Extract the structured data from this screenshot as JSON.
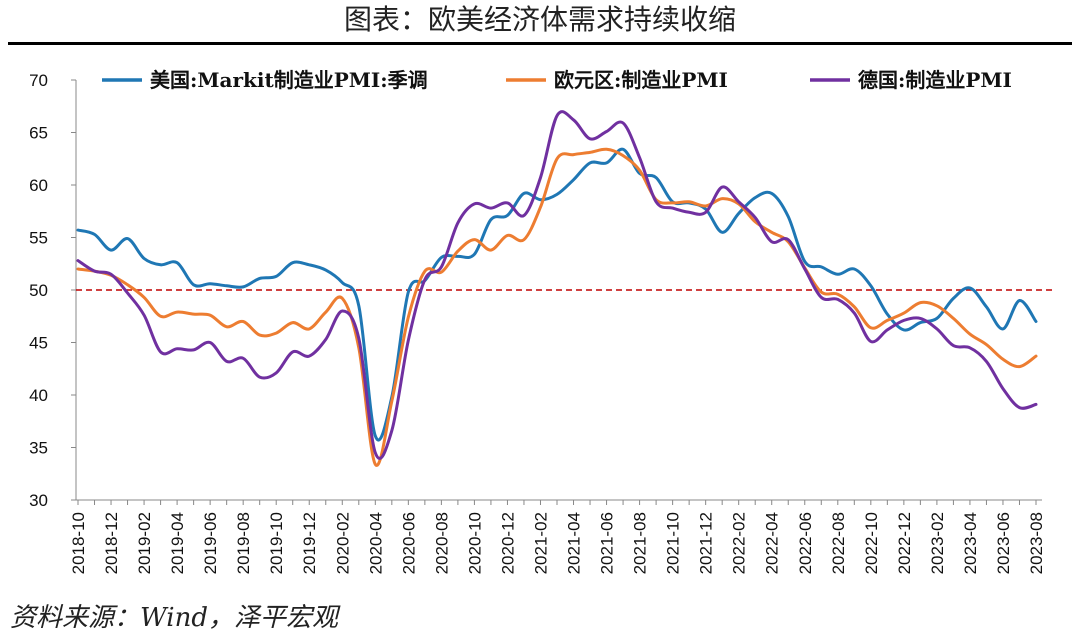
{
  "title": "图表：欧美经济体需求持续收缩",
  "source": "资料来源：Wind，泽平宏观",
  "chart_data": {
    "type": "line",
    "title": "图表：欧美经济体需求持续收缩",
    "xlabel": "",
    "ylabel": "",
    "ylim": [
      30,
      70
    ],
    "yticks": [
      30,
      35,
      40,
      45,
      50,
      55,
      60,
      65,
      70
    ],
    "x_tick_labels": [
      "2018-10",
      "2018-12",
      "2019-02",
      "2019-04",
      "2019-06",
      "2019-08",
      "2019-10",
      "2019-12",
      "2020-02",
      "2020-04",
      "2020-06",
      "2020-08",
      "2020-10",
      "2020-12",
      "2021-02",
      "2021-04",
      "2021-06",
      "2021-08",
      "2021-10",
      "2021-12",
      "2022-02",
      "2022-04",
      "2022-06",
      "2022-08",
      "2022-10",
      "2022-12",
      "2023-02",
      "2023-04",
      "2023-06",
      "2023-08"
    ],
    "x": [
      "2018-10",
      "2018-11",
      "2018-12",
      "2019-01",
      "2019-02",
      "2019-03",
      "2019-04",
      "2019-05",
      "2019-06",
      "2019-07",
      "2019-08",
      "2019-09",
      "2019-10",
      "2019-11",
      "2019-12",
      "2020-01",
      "2020-02",
      "2020-03",
      "2020-04",
      "2020-05",
      "2020-06",
      "2020-07",
      "2020-08",
      "2020-09",
      "2020-10",
      "2020-11",
      "2020-12",
      "2021-01",
      "2021-02",
      "2021-03",
      "2021-04",
      "2021-05",
      "2021-06",
      "2021-07",
      "2021-08",
      "2021-09",
      "2021-10",
      "2021-11",
      "2021-12",
      "2022-01",
      "2022-02",
      "2022-03",
      "2022-04",
      "2022-05",
      "2022-06",
      "2022-07",
      "2022-08",
      "2022-09",
      "2022-10",
      "2022-11",
      "2022-12",
      "2023-01",
      "2023-02",
      "2023-03",
      "2023-04",
      "2023-05",
      "2023-06",
      "2023-07",
      "2023-08"
    ],
    "reference_line": {
      "y": 50,
      "color": "#c00000",
      "style": "dashed"
    },
    "grid": false,
    "legend_position": "top",
    "series": [
      {
        "name": "美国:Markit制造业PMI:季调",
        "color": "#1f77b4",
        "values": [
          55.7,
          55.3,
          53.8,
          54.9,
          53.0,
          52.4,
          52.6,
          50.5,
          50.6,
          50.4,
          50.3,
          51.1,
          51.3,
          52.6,
          52.4,
          51.9,
          50.7,
          48.5,
          36.1,
          39.8,
          49.8,
          50.9,
          53.1,
          53.2,
          53.4,
          56.7,
          57.1,
          59.2,
          58.6,
          59.1,
          60.5,
          62.1,
          62.1,
          63.4,
          61.1,
          60.7,
          58.4,
          58.3,
          57.7,
          55.5,
          57.3,
          58.8,
          59.2,
          57.0,
          52.7,
          52.2,
          51.5,
          52.0,
          50.4,
          47.7,
          46.2,
          46.9,
          47.3,
          49.2,
          50.2,
          48.4,
          46.3,
          49.0,
          47.0
        ]
      },
      {
        "name": "欧元区:制造业PMI",
        "color": "#ed7d31",
        "values": [
          52.0,
          51.8,
          51.4,
          50.5,
          49.3,
          47.5,
          47.9,
          47.7,
          47.6,
          46.5,
          47.0,
          45.7,
          45.9,
          46.9,
          46.3,
          47.9,
          49.2,
          44.5,
          33.4,
          39.4,
          47.4,
          51.8,
          51.7,
          53.7,
          54.8,
          53.8,
          55.2,
          54.8,
          57.9,
          62.5,
          62.9,
          63.1,
          63.4,
          62.8,
          61.4,
          58.6,
          58.3,
          58.4,
          58.0,
          58.7,
          58.2,
          56.5,
          55.5,
          54.6,
          52.1,
          49.8,
          49.6,
          48.4,
          46.4,
          47.1,
          47.8,
          48.8,
          48.5,
          47.3,
          45.8,
          44.8,
          43.4,
          42.7,
          43.7
        ]
      },
      {
        "name": "德国:制造业PMI",
        "color": "#7030a0",
        "values": [
          52.8,
          51.8,
          51.5,
          49.7,
          47.6,
          44.1,
          44.4,
          44.3,
          45.0,
          43.2,
          43.5,
          41.7,
          42.1,
          44.1,
          43.7,
          45.3,
          48.0,
          45.4,
          34.5,
          36.6,
          45.2,
          51.0,
          52.2,
          56.4,
          58.2,
          57.8,
          58.3,
          57.1,
          60.7,
          66.6,
          66.2,
          64.4,
          65.1,
          65.9,
          62.6,
          58.4,
          57.8,
          57.4,
          57.4,
          59.8,
          58.4,
          56.9,
          54.6,
          54.8,
          52.0,
          49.3,
          49.1,
          47.8,
          45.1,
          46.2,
          47.1,
          47.3,
          46.3,
          44.7,
          44.5,
          43.2,
          40.6,
          38.8,
          39.1
        ]
      }
    ]
  }
}
